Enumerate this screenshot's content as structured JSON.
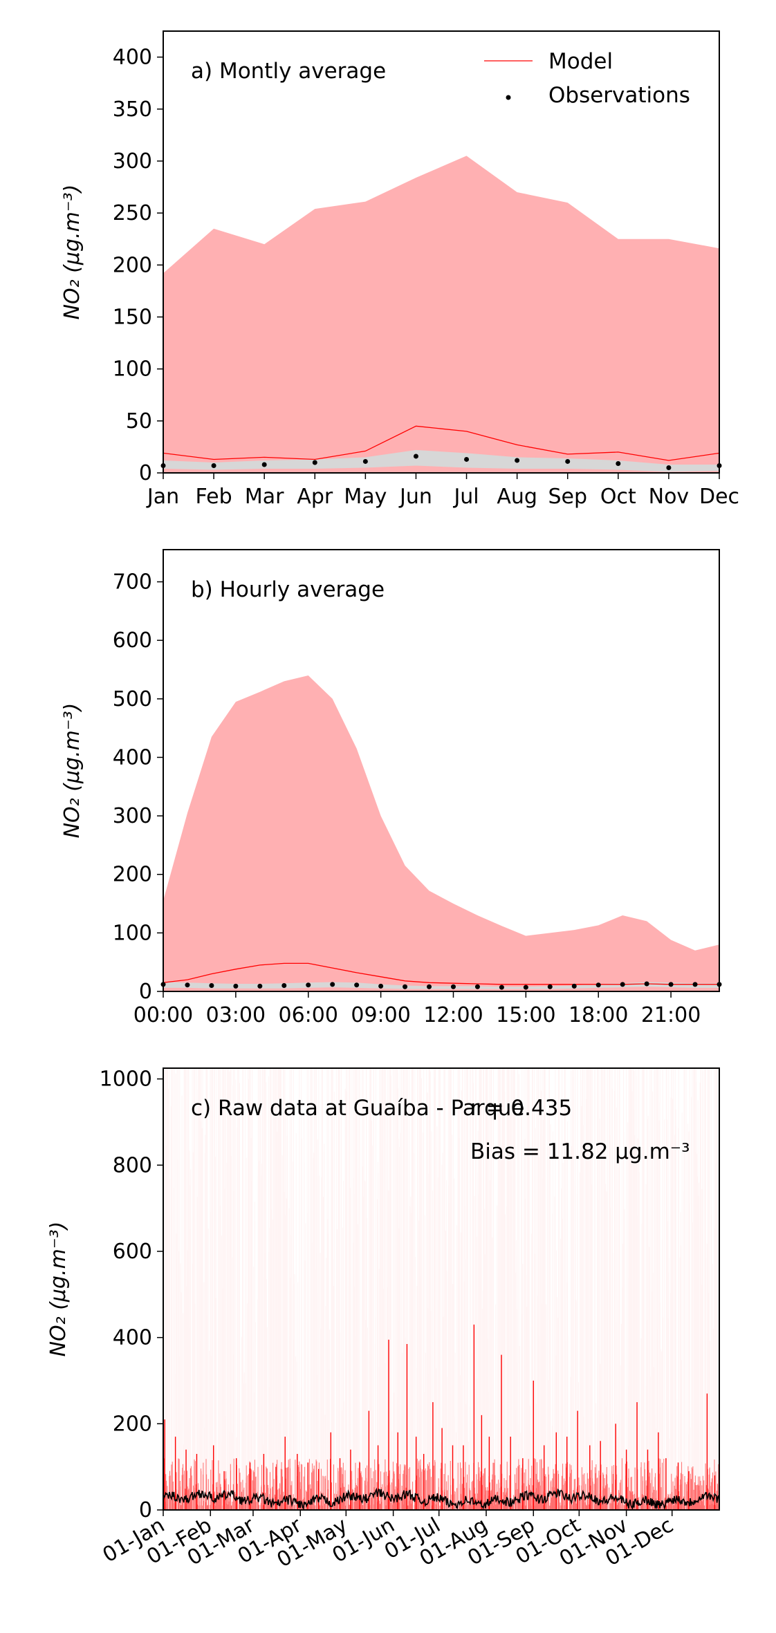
{
  "colors": {
    "model": "#ff0000",
    "model_band": "#ffb0b2",
    "obs_band": "#d7d7d7",
    "obs": "#000000",
    "axis": "#000000"
  },
  "chart_data": [
    {
      "id": "monthly",
      "type": "area",
      "panel_label": "a) Montly average",
      "ylabel": "NO₂ (μg.m⁻³)",
      "ylim": [
        0,
        425
      ],
      "yticks": [
        0,
        50,
        100,
        150,
        200,
        250,
        300,
        350,
        400
      ],
      "categories": [
        "Jan",
        "Feb",
        "Mar",
        "Apr",
        "May",
        "Jun",
        "Jul",
        "Aug",
        "Sep",
        "Oct",
        "Nov",
        "Dec"
      ],
      "legend": {
        "placement": "top-right",
        "model_label": "Model",
        "obs_label": "Observations"
      },
      "model_mean": [
        19,
        13,
        15,
        13,
        21,
        45,
        40,
        27,
        18,
        20,
        12,
        19
      ],
      "model_band_upper": [
        192,
        235,
        220,
        254,
        261,
        284,
        305,
        270,
        260,
        225,
        225,
        216
      ],
      "model_band_lower": [
        19,
        13,
        15,
        13,
        21,
        45,
        40,
        27,
        18,
        20,
        12,
        19
      ],
      "obs": [
        7,
        7,
        8,
        10,
        11,
        16,
        13,
        12,
        11,
        9,
        5,
        7
      ],
      "obs_band_upper": [
        12,
        10,
        12,
        13,
        15,
        22,
        19,
        15,
        14,
        12,
        8,
        8
      ],
      "obs_band_lower": [
        4,
        3,
        4,
        4,
        5,
        7,
        5,
        4,
        4,
        3,
        1,
        2
      ]
    },
    {
      "id": "hourly",
      "type": "area",
      "panel_label": "b) Hourly average",
      "ylabel": "NO₂ (μg.m⁻³)",
      "ylim": [
        0,
        755
      ],
      "yticks": [
        0,
        100,
        200,
        300,
        400,
        500,
        600,
        700
      ],
      "x": [
        0,
        1,
        2,
        3,
        4,
        5,
        6,
        7,
        8,
        9,
        10,
        11,
        12,
        13,
        14,
        15,
        16,
        17,
        18,
        19,
        20,
        21,
        22,
        23
      ],
      "xlim": [
        0,
        23
      ],
      "xticks": [
        0,
        3,
        6,
        9,
        12,
        15,
        18,
        21
      ],
      "xtick_labels": [
        "00:00",
        "03:00",
        "06:00",
        "09:00",
        "12:00",
        "15:00",
        "18:00",
        "21:00"
      ],
      "model_mean": [
        15,
        20,
        30,
        38,
        45,
        48,
        48,
        40,
        32,
        25,
        18,
        15,
        14,
        13,
        12,
        12,
        12,
        12,
        12,
        12,
        13,
        12,
        12,
        12
      ],
      "model_band_upper": [
        155,
        305,
        435,
        495,
        512,
        530,
        540,
        500,
        415,
        300,
        215,
        172,
        150,
        130,
        112,
        95,
        100,
        105,
        113,
        130,
        120,
        88,
        70,
        80
      ],
      "model_band_lower": [
        15,
        20,
        30,
        38,
        45,
        48,
        48,
        40,
        32,
        25,
        18,
        15,
        14,
        13,
        12,
        12,
        12,
        12,
        12,
        12,
        13,
        12,
        12,
        12
      ],
      "obs": [
        12,
        11,
        10,
        9,
        9,
        10,
        11,
        12,
        11,
        9,
        8,
        8,
        8,
        8,
        7,
        7,
        8,
        9,
        11,
        12,
        13,
        12,
        12,
        12
      ],
      "obs_band_upper": [
        16,
        15,
        14,
        13,
        13,
        14,
        15,
        16,
        15,
        12,
        10,
        9,
        9,
        9,
        8,
        8,
        9,
        10,
        13,
        14,
        16,
        15,
        14,
        14
      ],
      "obs_band_lower": [
        6,
        6,
        5,
        5,
        5,
        5,
        6,
        7,
        6,
        5,
        4,
        4,
        4,
        4,
        4,
        4,
        4,
        5,
        6,
        7,
        8,
        7,
        6,
        6
      ]
    },
    {
      "id": "raw",
      "type": "line",
      "panel_label": "c) Raw data at Guaíba - Parque",
      "r_label": "r = 0.435",
      "bias_label": "Bias = 11.82 μg.m⁻³",
      "ylabel": "NO₂ (μg.m⁻³)",
      "ylim": [
        0,
        1025
      ],
      "yticks": [
        0,
        200,
        400,
        600,
        800,
        1000
      ],
      "xlim": [
        0,
        365
      ],
      "xticks": [
        0,
        31,
        59,
        90,
        120,
        151,
        181,
        212,
        243,
        273,
        304,
        334
      ],
      "xtick_labels": [
        "01-Jan",
        "01-Feb",
        "01-Mar",
        "01-Apr",
        "01-May",
        "01-Jun",
        "01-Jul",
        "01-Aug",
        "01-Sep",
        "01-Oct",
        "01-Nov",
        "01-Dec"
      ],
      "model_spikes": [
        [
          1,
          210
        ],
        [
          8,
          170
        ],
        [
          15,
          140
        ],
        [
          22,
          130
        ],
        [
          33,
          150
        ],
        [
          40,
          90
        ],
        [
          48,
          120
        ],
        [
          57,
          110
        ],
        [
          66,
          130
        ],
        [
          74,
          100
        ],
        [
          80,
          170
        ],
        [
          88,
          130
        ],
        [
          95,
          110
        ],
        [
          102,
          95
        ],
        [
          110,
          180
        ],
        [
          116,
          120
        ],
        [
          123,
          140
        ],
        [
          129,
          110
        ],
        [
          135,
          230
        ],
        [
          141,
          150
        ],
        [
          148,
          395
        ],
        [
          154,
          180
        ],
        [
          160,
          385
        ],
        [
          166,
          170
        ],
        [
          171,
          130
        ],
        [
          177,
          250
        ],
        [
          183,
          190
        ],
        [
          190,
          150
        ],
        [
          197,
          150
        ],
        [
          204,
          430
        ],
        [
          209,
          220
        ],
        [
          214,
          170
        ],
        [
          222,
          360
        ],
        [
          228,
          170
        ],
        [
          236,
          120
        ],
        [
          243,
          300
        ],
        [
          250,
          150
        ],
        [
          258,
          180
        ],
        [
          265,
          170
        ],
        [
          272,
          230
        ],
        [
          280,
          150
        ],
        [
          287,
          160
        ],
        [
          297,
          200
        ],
        [
          304,
          140
        ],
        [
          311,
          250
        ],
        [
          318,
          140
        ],
        [
          325,
          180
        ],
        [
          330,
          120
        ],
        [
          338,
          110
        ],
        [
          345,
          90
        ],
        [
          357,
          270
        ],
        [
          362,
          80
        ]
      ]
    }
  ]
}
